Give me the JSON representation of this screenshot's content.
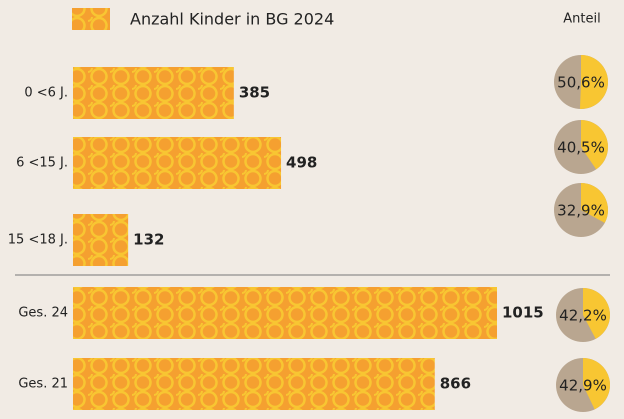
{
  "chart_data": {
    "type": "bar",
    "orientation": "horizontal",
    "categories": [
      "0 <6 J.",
      "6 <15 J.",
      "15 <18 J.",
      "Ges. 24",
      "Ges. 21"
    ],
    "series": [
      {
        "name": "Anzahl Kinder in BG 2024",
        "color": "#f5a030",
        "values": [
          385,
          498,
          132,
          1015,
          866
        ]
      },
      {
        "name": "Anteil",
        "type": "pie",
        "colors": [
          "#f8c632",
          "#b9a690"
        ],
        "values": [
          50.6,
          40.5,
          32.9,
          42.2,
          42.9
        ],
        "value_labels": [
          "50,6%",
          "40,5%",
          "32,9%",
          "42,2%",
          "42,9%"
        ]
      }
    ]
  }
}
